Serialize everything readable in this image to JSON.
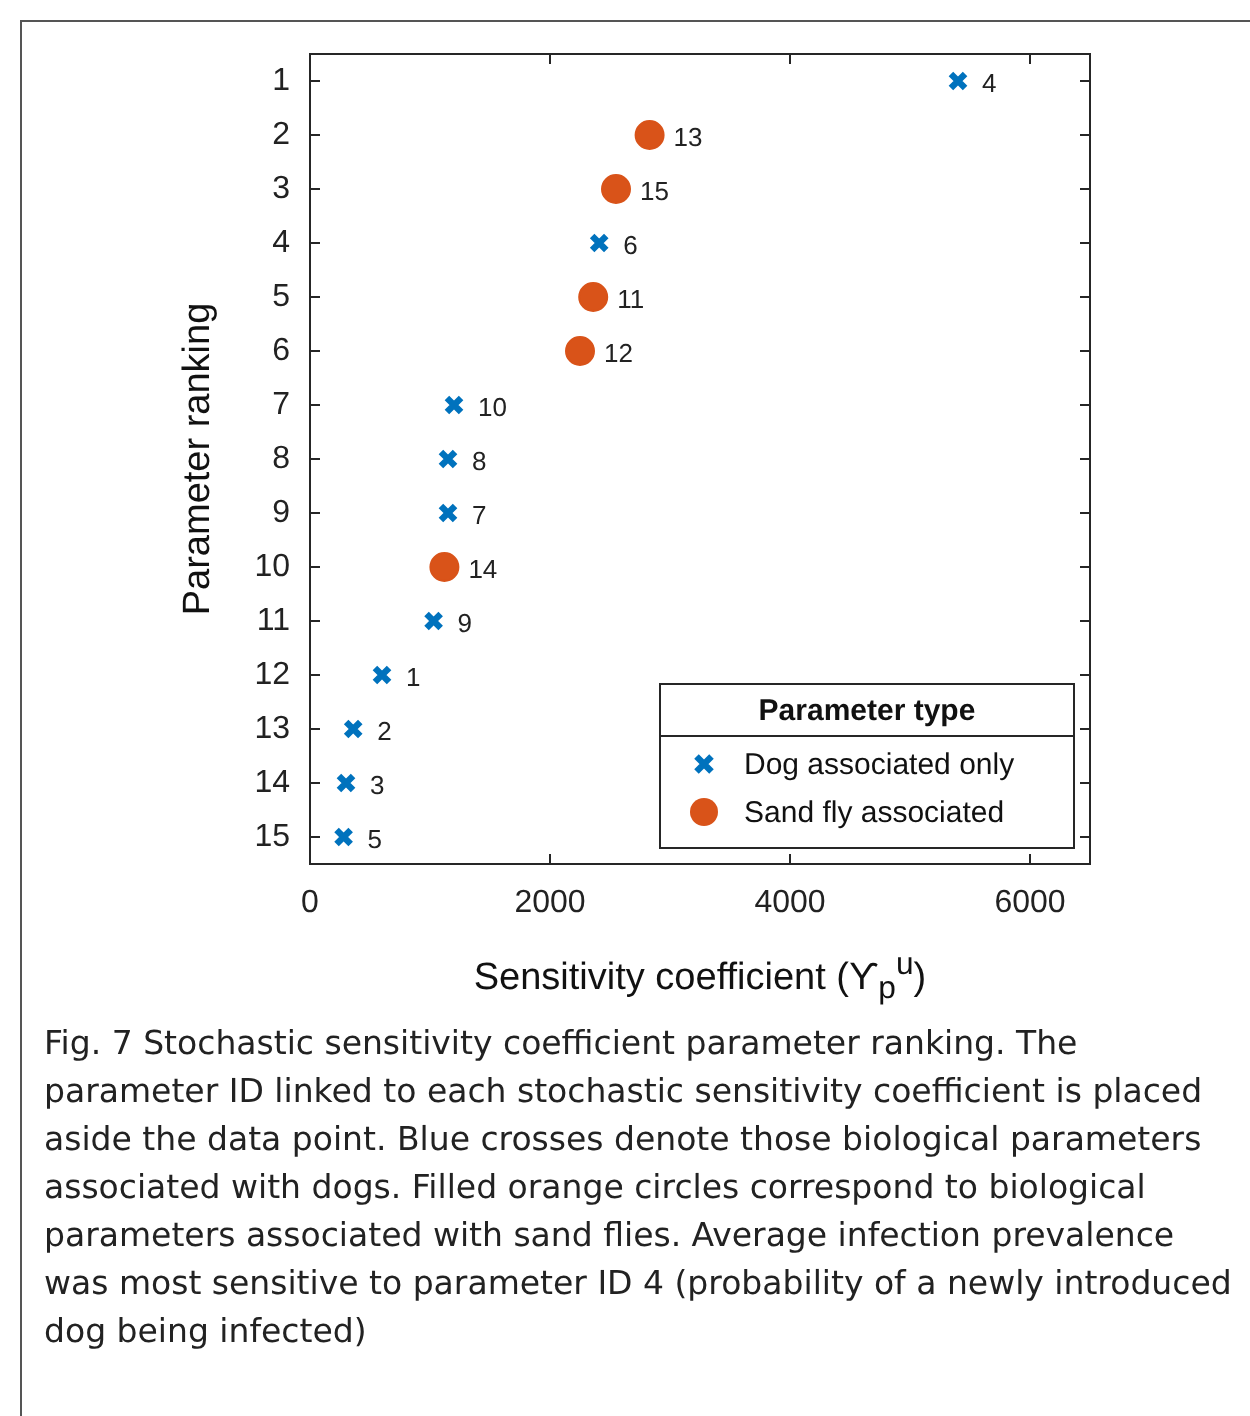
{
  "chart_data": {
    "type": "scatter",
    "xlabel": "Sensitivity coefficient (ϒ$_{p}$$^{u}$)",
    "ylabel": "Parameter ranking",
    "legend_title": "Parameter type",
    "legend": "bottom right",
    "grid": false,
    "xlim": [
      0,
      6500
    ],
    "xticks": [
      0,
      2000,
      4000,
      6000
    ],
    "ylim": [
      15.5,
      0.5
    ],
    "yticks": [
      1,
      2,
      3,
      4,
      5,
      6,
      7,
      8,
      9,
      10,
      11,
      12,
      13,
      14,
      15
    ],
    "series": [
      {
        "name": "Dog associated only",
        "color": "#0072bd",
        "marker": "cross",
        "x": [
          5400,
          2410,
          1200,
          1150,
          1150,
          1030,
          600,
          360,
          300,
          280
        ],
        "values": [
          1,
          4,
          7,
          8,
          9,
          11,
          12,
          13,
          14,
          15
        ]
      },
      {
        "name": "Sand fly associated",
        "color": "#d95319",
        "marker": "circle",
        "x": [
          2830,
          2550,
          2360,
          2250,
          1120
        ],
        "values": [
          2,
          3,
          5,
          6,
          10
        ]
      }
    ],
    "annotations": [
      {
        "text": "4",
        "x": 5400,
        "y": 1
      },
      {
        "text": "13",
        "x": 2830,
        "y": 2
      },
      {
        "text": "15",
        "x": 2550,
        "y": 3
      },
      {
        "text": "6",
        "x": 2410,
        "y": 4
      },
      {
        "text": "11",
        "x": 2360,
        "y": 5
      },
      {
        "text": "12",
        "x": 2250,
        "y": 6
      },
      {
        "text": "10",
        "x": 1200,
        "y": 7
      },
      {
        "text": "8",
        "x": 1150,
        "y": 8
      },
      {
        "text": "7",
        "x": 1150,
        "y": 9
      },
      {
        "text": "14",
        "x": 1120,
        "y": 10
      },
      {
        "text": "9",
        "x": 1030,
        "y": 11
      },
      {
        "text": "1",
        "x": 600,
        "y": 12
      },
      {
        "text": "2",
        "x": 360,
        "y": 13
      },
      {
        "text": "3",
        "x": 300,
        "y": 14
      },
      {
        "text": "5",
        "x": 280,
        "y": 15
      },
      "Fig. 7 Stochastic sensitivity coefficient parameter ranking. The parameter ID linked to each stochastic sensitivity coefficient is placed aside the data point. Blue crosses denote those biological parameters associated with dogs. Filled orange circles correspond to biological parameters associated with sand flies. Average infection prevalence was most sensitive to parameter ID 4 (probability of a newly introduced dog being infected)"
    ]
  }
}
